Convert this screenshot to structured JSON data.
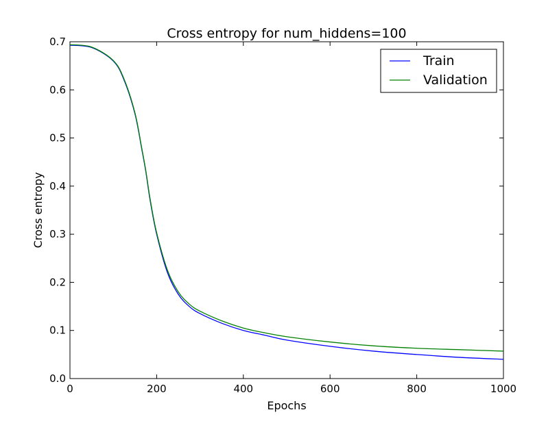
{
  "chart_data": {
    "type": "line",
    "title": "Cross entropy for num_hiddens=100",
    "xlabel": "Epochs",
    "ylabel": "Cross entropy",
    "xlim": [
      0,
      1000
    ],
    "ylim": [
      0.0,
      0.7
    ],
    "x_ticks": [
      "0",
      "200",
      "400",
      "600",
      "800",
      "1000"
    ],
    "y_ticks": [
      "0.0",
      "0.1",
      "0.2",
      "0.3",
      "0.4",
      "0.5",
      "0.6",
      "0.7"
    ],
    "grid": false,
    "legend_position": "top-right",
    "series": [
      {
        "name": "Train",
        "color": "#0000ff",
        "x": [
          0,
          50,
          100,
          125,
          150,
          165,
          175,
          185,
          200,
          225,
          250,
          275,
          300,
          350,
          400,
          450,
          500,
          600,
          700,
          800,
          900,
          1000
        ],
        "y": [
          0.693,
          0.688,
          0.66,
          0.62,
          0.55,
          0.48,
          0.43,
          0.37,
          0.3,
          0.22,
          0.175,
          0.15,
          0.135,
          0.115,
          0.1,
          0.09,
          0.08,
          0.067,
          0.057,
          0.05,
          0.044,
          0.04
        ]
      },
      {
        "name": "Validation",
        "color": "#008000",
        "x": [
          0,
          50,
          100,
          125,
          150,
          165,
          175,
          185,
          200,
          225,
          250,
          275,
          300,
          350,
          400,
          450,
          500,
          600,
          700,
          800,
          900,
          1000
        ],
        "y": [
          0.694,
          0.689,
          0.661,
          0.622,
          0.552,
          0.482,
          0.432,
          0.373,
          0.303,
          0.225,
          0.18,
          0.155,
          0.14,
          0.12,
          0.105,
          0.095,
          0.087,
          0.076,
          0.068,
          0.063,
          0.06,
          0.057
        ]
      }
    ]
  }
}
